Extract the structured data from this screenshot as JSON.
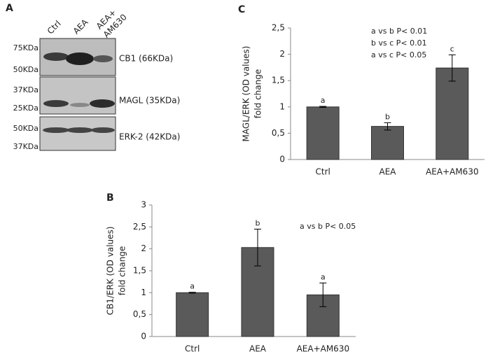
{
  "panel_a": {
    "panel": "A",
    "lanes": [
      "Ctrl",
      "AEA",
      [
        "AEA+",
        "AM630"
      ]
    ],
    "blots": [
      {
        "markers": [
          "75KDa",
          "50KDa"
        ],
        "label": "CB1 (66KDa)"
      },
      {
        "markers": [
          "37KDa",
          "25KDa"
        ],
        "label": "MAGL (35KDa)"
      },
      {
        "markers": [
          "50KDa",
          "37KDa"
        ],
        "label": "ERK-2  (42KDa)"
      }
    ]
  },
  "chart_data": [
    {
      "type": "bar",
      "panel": "C",
      "ylabel": [
        "MAGL/ERK (OD values)",
        "fold change"
      ],
      "categories": [
        "Ctrl",
        "AEA",
        "AEA+AM630"
      ],
      "values": [
        1.0,
        0.63,
        1.74
      ],
      "errors": [
        0.01,
        0.07,
        0.25
      ],
      "letters": [
        "a",
        "b",
        "c"
      ],
      "color": "#5a5a5a",
      "annotation": [
        "a vs b P< 0.01",
        "b vs c P< 0.01",
        "a vs c P< 0.05"
      ],
      "ylim": [
        0,
        2.5
      ],
      "yticks": [
        0,
        {
          "value": 0.5,
          "label": "0,5"
        },
        1,
        {
          "value": 1.5,
          "label": "1,5"
        },
        2,
        {
          "value": 2.5,
          "label": "2,5"
        }
      ]
    },
    {
      "type": "bar",
      "panel": "B",
      "ylabel": [
        "CB1/ERK (OD values)",
        "fold change"
      ],
      "categories": [
        "Ctrl",
        "AEA",
        "AEA+AM630"
      ],
      "values": [
        1.0,
        2.03,
        0.95
      ],
      "errors": [
        0.01,
        0.42,
        0.27
      ],
      "letters": [
        "a",
        "b",
        "a"
      ],
      "color": "#5a5a5a",
      "annotation": [
        "a vs b P< 0.05"
      ],
      "ylim": [
        0,
        3
      ],
      "yticks": [
        0,
        {
          "value": 0.5,
          "label": "0,5"
        },
        1,
        {
          "value": 1.5,
          "label": "1,5"
        },
        2,
        {
          "value": 2.5,
          "label": "2,5"
        },
        3
      ]
    }
  ]
}
